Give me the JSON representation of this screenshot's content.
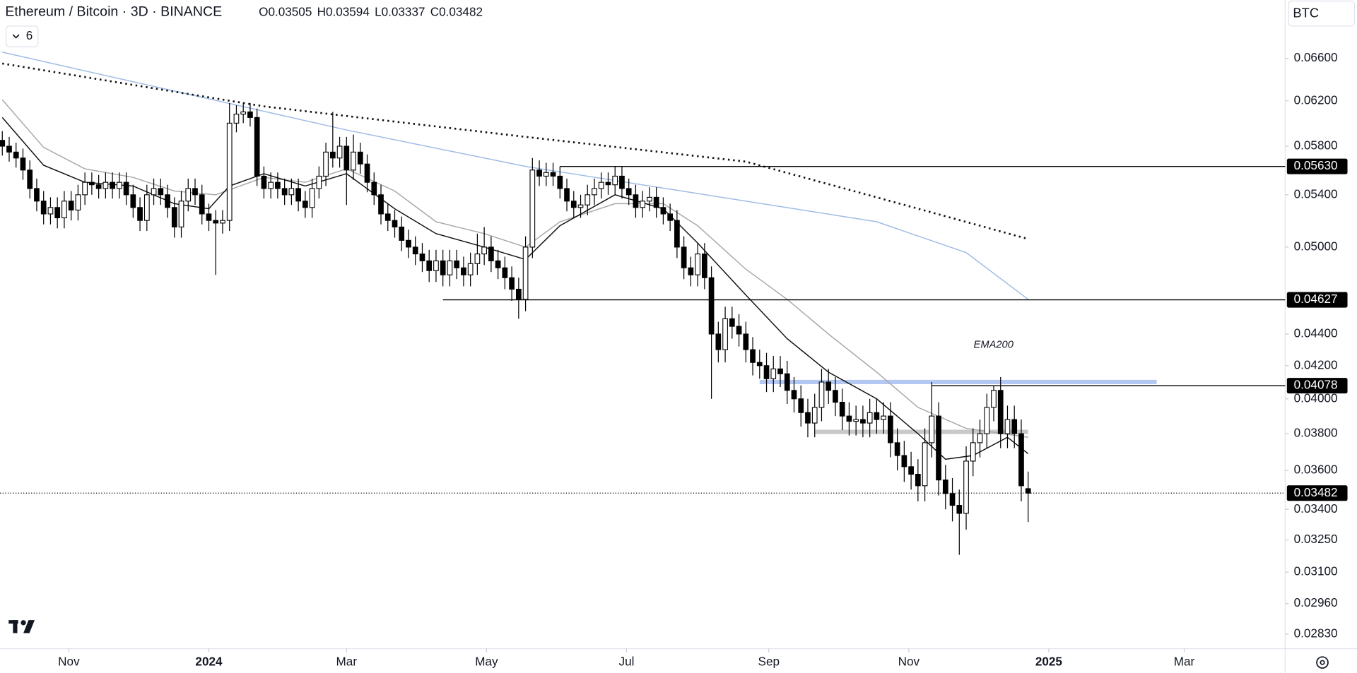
{
  "chart_data": {
    "type": "candlestick",
    "title": "Ethereum / Bitcoin · 3D · BINANCE",
    "legend_labels": [
      "O",
      "H",
      "L",
      "C"
    ],
    "indicators_count": 6,
    "currency": "BTC",
    "annotation": "EMA200",
    "log": true,
    "ylim": [
      0.0277,
      0.0719
    ],
    "yticks": [
      {
        "value": 0.066,
        "label": "0.06600"
      },
      {
        "value": 0.062,
        "label": "0.06200"
      },
      {
        "value": 0.058,
        "label": "0.05800"
      },
      {
        "value": 0.054,
        "label": "0.05400"
      },
      {
        "value": 0.05,
        "label": "0.05000"
      },
      {
        "value": 0.044,
        "label": "0.04400"
      },
      {
        "value": 0.042,
        "label": "0.04200"
      },
      {
        "value": 0.04,
        "label": "0.04000"
      },
      {
        "value": 0.038,
        "label": "0.03800"
      },
      {
        "value": 0.036,
        "label": "0.03600"
      },
      {
        "value": 0.034,
        "label": "0.03400"
      },
      {
        "value": 0.0325,
        "label": "0.03250"
      },
      {
        "value": 0.031,
        "label": "0.03100"
      },
      {
        "value": 0.0296,
        "label": "0.02960"
      },
      {
        "value": 0.0283,
        "label": "0.02830"
      }
    ],
    "xlim": [
      "2023-10-02",
      "2025-04-14"
    ],
    "xticks": [
      {
        "value": "2023-11-01",
        "label": "Nov"
      },
      {
        "value": "2024-01-01",
        "label": "2024"
      },
      {
        "value": "2024-03-01",
        "label": "Mar"
      },
      {
        "value": "2024-05-01",
        "label": "May"
      },
      {
        "value": "2024-07-01",
        "label": "Jul"
      },
      {
        "value": "2024-09-01",
        "label": "Sep"
      },
      {
        "value": "2024-11-01",
        "label": "Nov"
      },
      {
        "value": "2025-01-01",
        "label": "2025"
      },
      {
        "value": "2025-03-01",
        "label": "Mar"
      }
    ],
    "up_color": "#ffffff",
    "down_color": "#000000",
    "x": [
      "2023-10-03",
      "2023-10-06",
      "2023-10-09",
      "2023-10-12",
      "2023-10-15",
      "2023-10-18",
      "2023-10-21",
      "2023-10-24",
      "2023-10-27",
      "2023-10-30",
      "2023-11-02",
      "2023-11-05",
      "2023-11-08",
      "2023-11-11",
      "2023-11-14",
      "2023-11-17",
      "2023-11-20",
      "2023-11-23",
      "2023-11-26",
      "2023-11-29",
      "2023-12-02",
      "2023-12-05",
      "2023-12-08",
      "2023-12-11",
      "2023-12-14",
      "2023-12-17",
      "2023-12-20",
      "2023-12-23",
      "2023-12-26",
      "2023-12-29",
      "2024-01-01",
      "2024-01-04",
      "2024-01-07",
      "2024-01-10",
      "2024-01-13",
      "2024-01-16",
      "2024-01-19",
      "2024-01-22",
      "2024-01-25",
      "2024-01-28",
      "2024-01-31",
      "2024-02-03",
      "2024-02-06",
      "2024-02-09",
      "2024-02-12",
      "2024-02-15",
      "2024-02-18",
      "2024-02-21",
      "2024-02-24",
      "2024-02-27",
      "2024-03-01",
      "2024-03-04",
      "2024-03-07",
      "2024-03-10",
      "2024-03-13",
      "2024-03-16",
      "2024-03-19",
      "2024-03-22",
      "2024-03-25",
      "2024-03-28",
      "2024-03-31",
      "2024-04-03",
      "2024-04-06",
      "2024-04-09",
      "2024-04-12",
      "2024-04-15",
      "2024-04-18",
      "2024-04-21",
      "2024-04-24",
      "2024-04-27",
      "2024-04-30",
      "2024-05-03",
      "2024-05-06",
      "2024-05-09",
      "2024-05-12",
      "2024-05-15",
      "2024-05-18",
      "2024-05-21",
      "2024-05-24",
      "2024-05-27",
      "2024-05-30",
      "2024-06-02",
      "2024-06-05",
      "2024-06-08",
      "2024-06-11",
      "2024-06-14",
      "2024-06-17",
      "2024-06-20",
      "2024-06-23",
      "2024-06-26",
      "2024-06-29",
      "2024-07-02",
      "2024-07-05",
      "2024-07-08",
      "2024-07-11",
      "2024-07-14",
      "2024-07-17",
      "2024-07-20",
      "2024-07-23",
      "2024-07-26",
      "2024-07-29",
      "2024-08-01",
      "2024-08-04",
      "2024-08-07",
      "2024-08-10",
      "2024-08-13",
      "2024-08-16",
      "2024-08-19",
      "2024-08-22",
      "2024-08-25",
      "2024-08-28",
      "2024-08-31",
      "2024-09-03",
      "2024-09-06",
      "2024-09-09",
      "2024-09-12",
      "2024-09-15",
      "2024-09-18",
      "2024-09-21",
      "2024-09-24",
      "2024-09-27",
      "2024-09-30",
      "2024-10-03",
      "2024-10-06",
      "2024-10-09",
      "2024-10-12",
      "2024-10-15",
      "2024-10-18",
      "2024-10-21",
      "2024-10-24",
      "2024-10-27",
      "2024-10-30",
      "2024-11-02",
      "2024-11-05",
      "2024-11-08",
      "2024-11-11",
      "2024-11-14",
      "2024-11-17",
      "2024-11-20",
      "2024-11-23",
      "2024-11-26",
      "2024-11-29",
      "2024-12-02",
      "2024-12-05",
      "2024-12-08",
      "2024-12-11",
      "2024-12-14",
      "2024-12-17",
      "2024-12-20",
      "2024-12-23"
    ],
    "open": [
      0.0585,
      0.058,
      0.0575,
      0.057,
      0.056,
      0.0545,
      0.0535,
      0.0525,
      0.053,
      0.0522,
      0.0535,
      0.0528,
      0.054,
      0.055,
      0.0548,
      0.0545,
      0.055,
      0.0545,
      0.055,
      0.054,
      0.053,
      0.052,
      0.054,
      0.0545,
      0.054,
      0.053,
      0.0515,
      0.0535,
      0.0545,
      0.054,
      0.0525,
      0.052,
      0.0518,
      0.052,
      0.06,
      0.0608,
      0.061,
      0.0605,
      0.0555,
      0.0545,
      0.055,
      0.0545,
      0.054,
      0.0545,
      0.0535,
      0.053,
      0.0545,
      0.0555,
      0.0575,
      0.057,
      0.058,
      0.056,
      0.0575,
      0.0565,
      0.055,
      0.054,
      0.0525,
      0.052,
      0.0515,
      0.0505,
      0.05,
      0.0495,
      0.049,
      0.0483,
      0.049,
      0.048,
      0.049,
      0.0485,
      0.048,
      0.0488,
      0.0495,
      0.05,
      0.049,
      0.0485,
      0.0478,
      0.047,
      0.0463,
      0.05,
      0.056,
      0.0555,
      0.0558,
      0.0555,
      0.0545,
      0.0535,
      0.053,
      0.0532,
      0.054,
      0.0545,
      0.055,
      0.0548,
      0.0555,
      0.0545,
      0.054,
      0.053,
      0.0535,
      0.0538,
      0.053,
      0.0525,
      0.052,
      0.05,
      0.0485,
      0.048,
      0.0495,
      0.0478,
      0.044,
      0.043,
      0.045,
      0.0445,
      0.044,
      0.043,
      0.0422,
      0.042,
      0.0412,
      0.0418,
      0.0415,
      0.0405,
      0.04,
      0.0392,
      0.0386,
      0.0395,
      0.041,
      0.0405,
      0.0398,
      0.039,
      0.0387,
      0.0388,
      0.0386,
      0.0392,
      0.0388,
      0.039,
      0.0375,
      0.0368,
      0.0362,
      0.0358,
      0.0352,
      0.0375,
      0.039,
      0.0355,
      0.0348,
      0.0342,
      0.0338,
      0.0365,
      0.0375,
      0.038,
      0.0395,
      0.0405,
      0.038,
      0.0388,
      0.038,
      0.03505
    ],
    "high": [
      0.0593,
      0.0588,
      0.0583,
      0.0578,
      0.0568,
      0.0553,
      0.0543,
      0.0538,
      0.0538,
      0.0543,
      0.0543,
      0.0548,
      0.0558,
      0.0558,
      0.0556,
      0.0558,
      0.0558,
      0.0558,
      0.0558,
      0.0548,
      0.0538,
      0.0548,
      0.0553,
      0.0553,
      0.0548,
      0.0538,
      0.0543,
      0.0553,
      0.0553,
      0.0548,
      0.0533,
      0.0528,
      0.0528,
      0.0618,
      0.0616,
      0.0618,
      0.0618,
      0.0613,
      0.0563,
      0.0558,
      0.0558,
      0.0553,
      0.0553,
      0.0553,
      0.0543,
      0.0553,
      0.0563,
      0.0583,
      0.061,
      0.0588,
      0.0588,
      0.059,
      0.0583,
      0.0573,
      0.0558,
      0.0548,
      0.0533,
      0.0528,
      0.0523,
      0.0513,
      0.0508,
      0.0503,
      0.0498,
      0.0498,
      0.0498,
      0.0498,
      0.0498,
      0.0493,
      0.0496,
      0.051,
      0.0515,
      0.0508,
      0.0498,
      0.0493,
      0.0486,
      0.0478,
      0.0508,
      0.057,
      0.0568,
      0.0566,
      0.0566,
      0.0563,
      0.0553,
      0.0543,
      0.054,
      0.0548,
      0.0553,
      0.0558,
      0.0558,
      0.0563,
      0.0563,
      0.0553,
      0.0548,
      0.0543,
      0.0546,
      0.0546,
      0.0538,
      0.0533,
      0.0528,
      0.0508,
      0.0493,
      0.0503,
      0.0503,
      0.0486,
      0.0448,
      0.0458,
      0.0458,
      0.0453,
      0.0448,
      0.0438,
      0.043,
      0.0428,
      0.0426,
      0.0426,
      0.0423,
      0.0413,
      0.0408,
      0.04,
      0.0403,
      0.0418,
      0.0418,
      0.0413,
      0.0406,
      0.0398,
      0.0396,
      0.0396,
      0.04,
      0.04,
      0.0398,
      0.0398,
      0.0383,
      0.0376,
      0.037,
      0.0366,
      0.0383,
      0.041,
      0.0398,
      0.0363,
      0.0356,
      0.035,
      0.0373,
      0.0383,
      0.0388,
      0.0403,
      0.0408,
      0.0413,
      0.0396,
      0.0396,
      0.0388,
      0.03594
    ],
    "low": [
      0.0572,
      0.0567,
      0.0562,
      0.0552,
      0.0537,
      0.0527,
      0.0517,
      0.0517,
      0.0514,
      0.0514,
      0.052,
      0.052,
      0.0532,
      0.054,
      0.0537,
      0.0537,
      0.0537,
      0.0537,
      0.0532,
      0.0522,
      0.0512,
      0.0512,
      0.0532,
      0.0532,
      0.0522,
      0.0507,
      0.0507,
      0.0527,
      0.0532,
      0.0517,
      0.0512,
      0.048,
      0.051,
      0.0512,
      0.0592,
      0.06,
      0.0597,
      0.0547,
      0.0537,
      0.0537,
      0.0537,
      0.0532,
      0.0532,
      0.0527,
      0.0522,
      0.0522,
      0.0537,
      0.0547,
      0.0562,
      0.0562,
      0.0532,
      0.0552,
      0.0557,
      0.0542,
      0.0532,
      0.0517,
      0.0512,
      0.0507,
      0.0497,
      0.0492,
      0.0487,
      0.0482,
      0.0475,
      0.0475,
      0.0472,
      0.0472,
      0.0477,
      0.0472,
      0.0472,
      0.048,
      0.0487,
      0.0482,
      0.0477,
      0.047,
      0.0462,
      0.045,
      0.0455,
      0.0492,
      0.0547,
      0.0547,
      0.0547,
      0.0537,
      0.0527,
      0.0522,
      0.0522,
      0.0524,
      0.0532,
      0.0537,
      0.054,
      0.054,
      0.0537,
      0.0532,
      0.0522,
      0.0522,
      0.0527,
      0.0522,
      0.0517,
      0.0512,
      0.0492,
      0.0477,
      0.0472,
      0.0472,
      0.047,
      0.04,
      0.0422,
      0.0422,
      0.0437,
      0.0432,
      0.0422,
      0.0414,
      0.0412,
      0.0404,
      0.0404,
      0.0407,
      0.0397,
      0.0392,
      0.0384,
      0.0378,
      0.0378,
      0.0387,
      0.0397,
      0.039,
      0.0382,
      0.0379,
      0.0379,
      0.0378,
      0.0378,
      0.038,
      0.038,
      0.0367,
      0.036,
      0.0354,
      0.035,
      0.0344,
      0.0344,
      0.0367,
      0.0347,
      0.034,
      0.0334,
      0.0318,
      0.033,
      0.0357,
      0.0367,
      0.0372,
      0.0387,
      0.0372,
      0.0372,
      0.0372,
      0.0344,
      0.03337
    ],
    "close": [
      0.058,
      0.0575,
      0.057,
      0.056,
      0.0545,
      0.0535,
      0.0525,
      0.053,
      0.0522,
      0.0535,
      0.0528,
      0.054,
      0.055,
      0.0548,
      0.0545,
      0.055,
      0.0545,
      0.055,
      0.054,
      0.053,
      0.052,
      0.054,
      0.0545,
      0.054,
      0.053,
      0.0515,
      0.0535,
      0.0545,
      0.054,
      0.0525,
      0.052,
      0.0518,
      0.052,
      0.06,
      0.0608,
      0.061,
      0.0605,
      0.0555,
      0.0545,
      0.055,
      0.0545,
      0.054,
      0.0545,
      0.0535,
      0.053,
      0.0545,
      0.0555,
      0.0575,
      0.057,
      0.058,
      0.056,
      0.0575,
      0.0565,
      0.055,
      0.054,
      0.0525,
      0.052,
      0.0515,
      0.0505,
      0.05,
      0.0495,
      0.049,
      0.0483,
      0.049,
      0.048,
      0.049,
      0.0485,
      0.048,
      0.0488,
      0.0495,
      0.05,
      0.049,
      0.0485,
      0.0478,
      0.047,
      0.0463,
      0.05,
      0.056,
      0.0555,
      0.0558,
      0.0555,
      0.0545,
      0.0535,
      0.053,
      0.0532,
      0.054,
      0.0545,
      0.055,
      0.0548,
      0.0555,
      0.0545,
      0.054,
      0.053,
      0.0535,
      0.0538,
      0.053,
      0.0525,
      0.052,
      0.05,
      0.0485,
      0.048,
      0.0495,
      0.0478,
      0.044,
      0.043,
      0.045,
      0.0445,
      0.044,
      0.043,
      0.0422,
      0.042,
      0.0412,
      0.0418,
      0.0415,
      0.0405,
      0.04,
      0.0392,
      0.0386,
      0.0395,
      0.041,
      0.0405,
      0.0398,
      0.039,
      0.0387,
      0.0388,
      0.0386,
      0.0392,
      0.0388,
      0.039,
      0.0375,
      0.0368,
      0.0362,
      0.0358,
      0.0352,
      0.0375,
      0.039,
      0.0355,
      0.0348,
      0.0342,
      0.0338,
      0.0365,
      0.0375,
      0.038,
      0.0395,
      0.0405,
      0.038,
      0.0388,
      0.038,
      0.0352,
      0.03482
    ],
    "lines": [
      {
        "color": "#9fbce6",
        "dash": "none",
        "x": [
          "2023-10-03",
          "2023-12-17",
          "2024-03-01",
          "2024-05-18",
          "2024-08-01",
          "2024-10-18",
          "2024-11-26",
          "2024-12-23"
        ],
        "values": [
          0.0666,
          0.0629,
          0.0594,
          0.0563,
          0.0541,
          0.0519,
          0.0496,
          0.0463
        ]
      },
      {
        "color": "#111111",
        "dash": "2 4",
        "x": [
          "2023-10-03",
          "2024-01-25",
          "2024-05-18",
          "2024-08-22",
          "2024-10-18",
          "2024-12-23"
        ],
        "values": [
          0.0655,
          0.0615,
          0.0588,
          0.0567,
          0.0538,
          0.0506
        ]
      },
      {
        "color": "#a8a8a8",
        "dash": "none",
        "x": [
          "2023-10-03",
          "2023-10-21",
          "2023-11-08",
          "2023-11-29",
          "2023-12-17",
          "2024-01-04",
          "2024-01-25",
          "2024-02-12",
          "2024-03-01",
          "2024-03-22",
          "2024-04-09",
          "2024-04-30",
          "2024-05-18",
          "2024-06-02",
          "2024-06-26",
          "2024-07-17",
          "2024-08-01",
          "2024-08-22",
          "2024-09-09",
          "2024-09-27",
          "2024-10-18",
          "2024-11-05",
          "2024-11-26",
          "2024-12-23"
        ],
        "values": [
          0.0621,
          0.0579,
          0.0561,
          0.0554,
          0.0543,
          0.054,
          0.0554,
          0.055,
          0.0561,
          0.0543,
          0.0519,
          0.051,
          0.05,
          0.0519,
          0.0533,
          0.0533,
          0.0516,
          0.0484,
          0.0463,
          0.044,
          0.0416,
          0.0395,
          0.0383,
          0.0378
        ]
      },
      {
        "color": "#111111",
        "dash": "none",
        "x": [
          "2023-10-03",
          "2023-10-21",
          "2023-11-08",
          "2023-11-29",
          "2023-12-17",
          "2024-01-01",
          "2024-01-10",
          "2024-01-25",
          "2024-02-12",
          "2024-03-01",
          "2024-03-22",
          "2024-04-09",
          "2024-04-30",
          "2024-05-18",
          "2024-06-02",
          "2024-06-26",
          "2024-07-17",
          "2024-08-01",
          "2024-08-22",
          "2024-09-09",
          "2024-09-27",
          "2024-10-18",
          "2024-11-05",
          "2024-11-17",
          "2024-11-29",
          "2024-12-14",
          "2024-12-23"
        ],
        "values": [
          0.0605,
          0.0564,
          0.055,
          0.0547,
          0.0533,
          0.0529,
          0.0547,
          0.0557,
          0.0547,
          0.0557,
          0.0529,
          0.051,
          0.05,
          0.0491,
          0.0516,
          0.054,
          0.0529,
          0.0503,
          0.0466,
          0.0437,
          0.0416,
          0.04,
          0.038,
          0.0366,
          0.0368,
          0.0378,
          0.0369
        ]
      }
    ],
    "levels": [
      {
        "price": 0.0563,
        "label": "0.05630",
        "start": "2024-06-02"
      },
      {
        "price": 0.04627,
        "label": "0.04627",
        "start": "2024-04-12"
      },
      {
        "price": 0.04078,
        "label": "0.04078",
        "start": "2024-11-11"
      }
    ],
    "zones": [
      {
        "price": 0.041,
        "start": "2024-08-28",
        "end": "2025-02-17",
        "color": "#b3c8f2"
      },
      {
        "price": 0.0381,
        "start": "2024-09-21",
        "end": "2024-12-23",
        "color": "#c9c9c9"
      }
    ]
  }
}
